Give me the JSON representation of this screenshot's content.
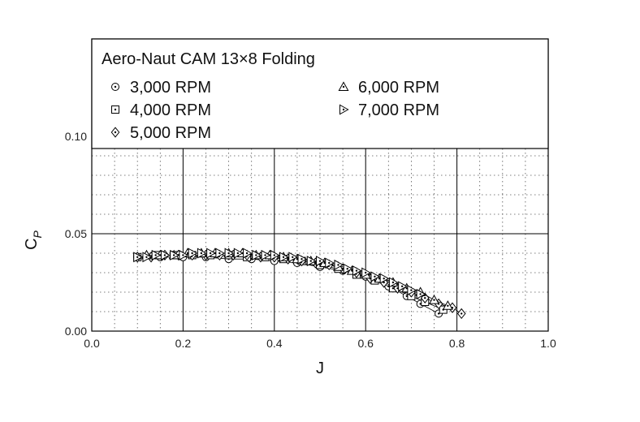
{
  "chart_data": {
    "type": "scatter",
    "title": "Aero-Naut CAM 13×8 Folding",
    "xlabel": "J",
    "ylabel_main": "C",
    "ylabel_sub": "P",
    "xlim": [
      0.0,
      1.0
    ],
    "ylim": [
      0.0,
      0.15
    ],
    "x_ticks": [
      "0.0",
      "0.2",
      "0.4",
      "0.6",
      "0.8",
      "1.0"
    ],
    "y_ticks": [
      "0.00",
      "0.05",
      "0.10"
    ],
    "grid": true,
    "legend_position": "top",
    "series": [
      {
        "name": "3,000 RPM",
        "marker": "circle-dot",
        "x": [
          0.1,
          0.15,
          0.2,
          0.25,
          0.3,
          0.35,
          0.4,
          0.45,
          0.5,
          0.55,
          0.6,
          0.65,
          0.69,
          0.72,
          0.76
        ],
        "y": [
          0.038,
          0.038,
          0.038,
          0.038,
          0.037,
          0.037,
          0.036,
          0.035,
          0.033,
          0.031,
          0.028,
          0.023,
          0.018,
          0.014,
          0.009
        ]
      },
      {
        "name": "4,000 RPM",
        "marker": "square-dot",
        "x": [
          0.1,
          0.14,
          0.18,
          0.22,
          0.26,
          0.3,
          0.34,
          0.38,
          0.42,
          0.46,
          0.5,
          0.54,
          0.58,
          0.62,
          0.66,
          0.7,
          0.73,
          0.77
        ],
        "y": [
          0.038,
          0.039,
          0.039,
          0.039,
          0.039,
          0.039,
          0.038,
          0.038,
          0.037,
          0.036,
          0.034,
          0.032,
          0.029,
          0.026,
          0.022,
          0.018,
          0.015,
          0.011
        ]
      },
      {
        "name": "5,000 RPM",
        "marker": "diamond-dot",
        "x": [
          0.1,
          0.13,
          0.16,
          0.19,
          0.22,
          0.25,
          0.28,
          0.31,
          0.34,
          0.37,
          0.4,
          0.43,
          0.46,
          0.49,
          0.52,
          0.55,
          0.58,
          0.61,
          0.64,
          0.67,
          0.7,
          0.73,
          0.76,
          0.79,
          0.81
        ],
        "y": [
          0.038,
          0.038,
          0.039,
          0.039,
          0.039,
          0.039,
          0.039,
          0.039,
          0.039,
          0.038,
          0.038,
          0.037,
          0.036,
          0.035,
          0.034,
          0.032,
          0.03,
          0.027,
          0.025,
          0.022,
          0.02,
          0.017,
          0.014,
          0.012,
          0.009
        ]
      },
      {
        "name": "6,000 RPM",
        "marker": "triangle-up-dot",
        "x": [
          0.12,
          0.15,
          0.18,
          0.21,
          0.24,
          0.27,
          0.3,
          0.33,
          0.36,
          0.39,
          0.42,
          0.45,
          0.48,
          0.51,
          0.54,
          0.57,
          0.6,
          0.63,
          0.66,
          0.69,
          0.72,
          0.75,
          0.78
        ],
        "y": [
          0.039,
          0.039,
          0.039,
          0.04,
          0.04,
          0.04,
          0.04,
          0.04,
          0.039,
          0.039,
          0.038,
          0.037,
          0.036,
          0.035,
          0.033,
          0.031,
          0.029,
          0.027,
          0.025,
          0.022,
          0.02,
          0.016,
          0.013
        ]
      },
      {
        "name": "7,000 RPM",
        "marker": "triangle-right-dot",
        "x": [
          0.1,
          0.12,
          0.14,
          0.16,
          0.18,
          0.2,
          0.22,
          0.24,
          0.26,
          0.28,
          0.3,
          0.32,
          0.34,
          0.36,
          0.38,
          0.4,
          0.42,
          0.44,
          0.46,
          0.48,
          0.5,
          0.52,
          0.54,
          0.56,
          0.58,
          0.6,
          0.62,
          0.64,
          0.66,
          0.68,
          0.7,
          0.72
        ],
        "y": [
          0.038,
          0.038,
          0.039,
          0.039,
          0.039,
          0.039,
          0.04,
          0.04,
          0.04,
          0.04,
          0.04,
          0.04,
          0.04,
          0.039,
          0.039,
          0.039,
          0.038,
          0.038,
          0.037,
          0.036,
          0.036,
          0.035,
          0.034,
          0.032,
          0.031,
          0.03,
          0.028,
          0.027,
          0.025,
          0.023,
          0.021,
          0.019
        ]
      }
    ]
  }
}
